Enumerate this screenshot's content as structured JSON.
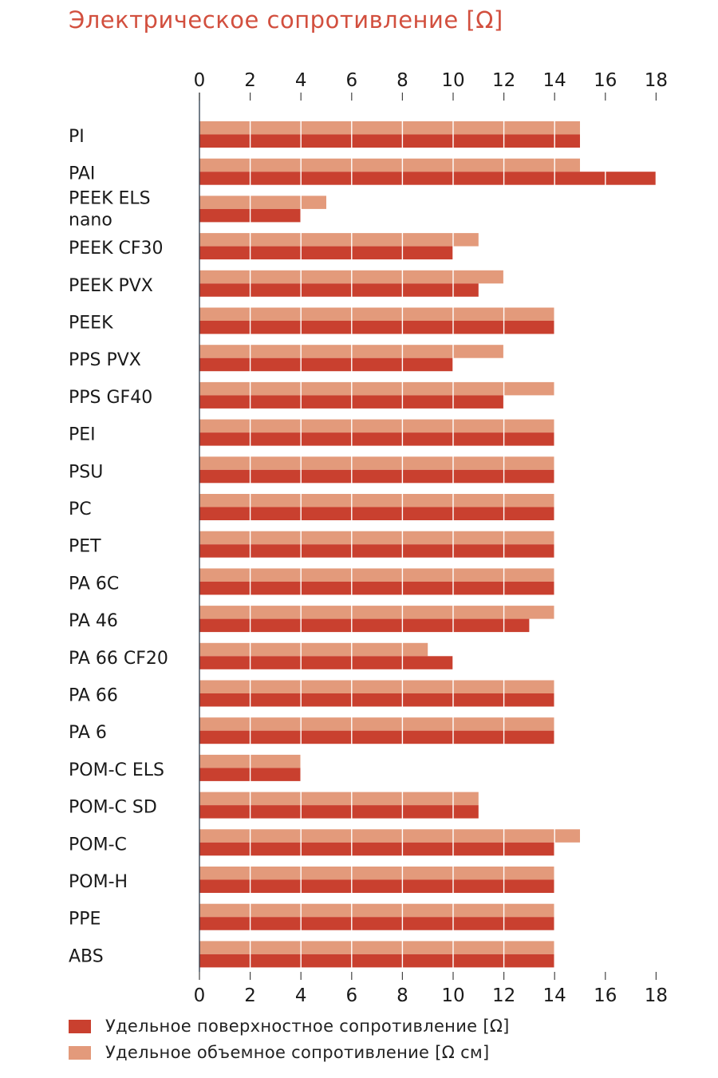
{
  "chart_data": {
    "type": "bar",
    "orientation": "horizontal",
    "title": "Электрическое сопротивление [Ω]",
    "categories": [
      "PI",
      "PAI",
      "PEEK ELS nano",
      "PEEK CF30",
      "PEEK PVX",
      "PEEK",
      "PPS PVX",
      "PPS GF40",
      "PEI",
      "PSU",
      "PC",
      "PET",
      "PA 6C",
      "PA 46",
      "PA 66 CF20",
      "PA 66",
      "PA 6",
      "POM-C ELS",
      "POM-C SD",
      "POM-C",
      "POM-H",
      "PPE",
      "ABS"
    ],
    "category_lines": [
      [
        "PI"
      ],
      [
        "PAI"
      ],
      [
        "PEEK ELS",
        "nano"
      ],
      [
        "PEEK CF30"
      ],
      [
        "PEEK PVX"
      ],
      [
        "PEEK"
      ],
      [
        "PPS PVX"
      ],
      [
        "PPS GF40"
      ],
      [
        "PEI"
      ],
      [
        "PSU"
      ],
      [
        "PC"
      ],
      [
        "PET"
      ],
      [
        "PA 6C"
      ],
      [
        "PA 46"
      ],
      [
        "PA 66 CF20"
      ],
      [
        "PA 66"
      ],
      [
        "PA 6"
      ],
      [
        "POM-C ELS"
      ],
      [
        "POM-C SD"
      ],
      [
        "POM-C"
      ],
      [
        "POM-H"
      ],
      [
        "PPE"
      ],
      [
        "ABS"
      ]
    ],
    "series": [
      {
        "name": "Удельное объемное сопротивление [Ω см]",
        "color": "#e39a7b",
        "values": [
          15,
          15,
          5,
          11,
          12,
          14,
          12,
          14,
          14,
          14,
          14,
          14,
          14,
          14,
          9,
          14,
          14,
          4,
          11,
          15,
          14,
          14,
          14
        ]
      },
      {
        "name": "Удельное поверхностное сопротивление [Ω]",
        "color": "#c9402f",
        "values": [
          15,
          18,
          4,
          10,
          11,
          14,
          10,
          12,
          14,
          14,
          14,
          14,
          14,
          13,
          10,
          14,
          14,
          4,
          11,
          14,
          14,
          14,
          14
        ]
      }
    ],
    "xlim": [
      0,
      18
    ],
    "x_ticks": [
      "0",
      "2",
      "4",
      "6",
      "8",
      "10",
      "12",
      "14",
      "16",
      "18"
    ],
    "grid": true,
    "legend_position": "bottom-left"
  },
  "legend": {
    "items": [
      {
        "label": "Удельное поверхностное сопротивление [Ω]",
        "color": "#c9402f"
      },
      {
        "label": "Удельное объемное сопротивление [Ω см]",
        "color": "#e39a7b"
      }
    ]
  }
}
